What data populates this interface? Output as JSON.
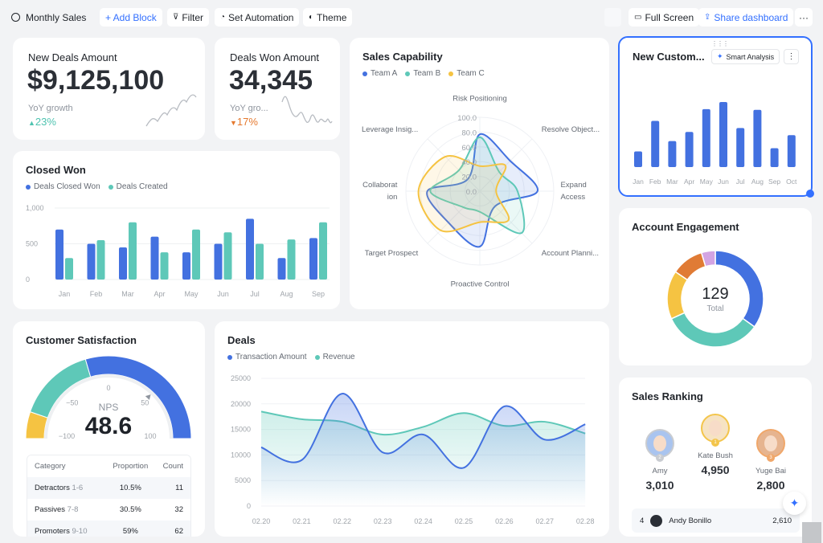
{
  "toolbar": {
    "title": "Monthly Sales",
    "add_block": "+ Add Block",
    "filter": "Filter",
    "automation": "Set Automation",
    "theme": "Theme",
    "full_screen": "Full Screen",
    "share": "Share dashboard",
    "more": "···"
  },
  "colors": {
    "blue": "#4371e0",
    "teal": "#5ec8b8",
    "yellow": "#f5c342",
    "orange": "#e07b35",
    "purple": "#d3a4e3",
    "up": "#4fc3b0",
    "down": "#e5792f"
  },
  "kpi": [
    {
      "title": "New Deals Amount",
      "value": "$9,125,100",
      "sub": "YoY growth",
      "change": "23%",
      "dir": "up"
    },
    {
      "title": "Deals Won Amount",
      "value": "34,345",
      "sub": "YoY gro...",
      "change": "17%",
      "dir": "down"
    }
  ],
  "chart_data": [
    {
      "id": "closed_won",
      "type": "bar",
      "title": "Closed Won",
      "categories": [
        "Jan",
        "Feb",
        "Mar",
        "Apr",
        "May",
        "Jun",
        "Jul",
        "Aug",
        "Sep"
      ],
      "series": [
        {
          "name": "Deals Closed Won",
          "values": [
            700,
            500,
            450,
            600,
            380,
            500,
            850,
            300,
            580
          ]
        },
        {
          "name": "Deals Created",
          "values": [
            300,
            550,
            800,
            380,
            700,
            660,
            500,
            560,
            800
          ]
        }
      ],
      "ylim": [
        0,
        1000
      ],
      "yticks": [
        "0",
        "500",
        "1,000"
      ],
      "grid": true,
      "legend": "top-left"
    },
    {
      "id": "sales_capability",
      "type": "radar",
      "title": "Sales Capability",
      "axes": [
        "Risk Positioning",
        "Resolve Object...",
        "Expand Access",
        "Account Planni...",
        "Proactive Control",
        "Target Prospect",
        "Collaboration",
        "Leverage Insig..."
      ],
      "rticks": [
        "0.0",
        "20.0",
        "40.0",
        "60.0",
        "80.0",
        "100.0"
      ],
      "rlim": [
        0,
        100
      ],
      "series": [
        {
          "name": "Team A",
          "values": [
            77,
            58,
            78,
            29,
            75,
            60,
            71,
            23
          ]
        },
        {
          "name": "Team B",
          "values": [
            73,
            37,
            51,
            80,
            28,
            31,
            67,
            40
          ]
        },
        {
          "name": "Team C",
          "values": [
            34,
            49,
            22,
            55,
            42,
            75,
            83,
            66
          ]
        }
      ],
      "legend": "top-left"
    },
    {
      "id": "new_customers",
      "type": "bar",
      "title": "New Custom...",
      "categories": [
        "Jan",
        "Feb",
        "Mar",
        "Apr",
        "May",
        "Jun",
        "Jul",
        "Aug",
        "Sep",
        "Oct"
      ],
      "values": [
        24,
        71,
        40,
        54,
        89,
        100,
        60,
        88,
        29,
        49
      ]
    },
    {
      "id": "account_engagement",
      "type": "pie",
      "title": "Account Engagement",
      "values": [
        45,
        43,
        21,
        14,
        6
      ],
      "total": "129",
      "total_label": "Total"
    },
    {
      "id": "deals",
      "type": "area",
      "title": "Deals",
      "categories": [
        "02.20",
        "02.21",
        "02.22",
        "02.23",
        "02.24",
        "02.25",
        "02.26",
        "02.27",
        "02.28"
      ],
      "series": [
        {
          "name": "Transaction Amount",
          "values": [
            11500,
            9000,
            22000,
            10500,
            14000,
            7500,
            19500,
            13000,
            16000
          ]
        },
        {
          "name": "Revenue",
          "values": [
            18500,
            17000,
            16500,
            14000,
            15500,
            18200,
            15700,
            16500,
            14200
          ]
        }
      ],
      "ylim": [
        0,
        25000
      ],
      "yticks": [
        "0",
        "5000",
        "10000",
        "15000",
        "20000",
        "25000"
      ],
      "grid": true,
      "legend": "top-left"
    }
  ],
  "new_customers": {
    "smart_analysis": "Smart Analysis",
    "more": "⋮"
  },
  "satisfaction": {
    "title": "Customer Satisfaction",
    "label": "NPS",
    "value": "48.6",
    "nps": 48.6,
    "ticks": [
      "−100",
      "−50",
      "0",
      "50",
      "100"
    ],
    "headers": [
      "Category",
      "Proportion",
      "Count"
    ],
    "rows": [
      {
        "name": "Detractors",
        "range": "1-6",
        "proportion": "10.5%",
        "count": "11",
        "fraction": 0.105
      },
      {
        "name": "Passives",
        "range": "7-8",
        "proportion": "30.5%",
        "count": "32",
        "fraction": 0.305
      },
      {
        "name": "Promoters",
        "range": "9-10",
        "proportion": "59%",
        "count": "62",
        "fraction": 0.59
      }
    ]
  },
  "ranking": {
    "title": "Sales Ranking",
    "top": [
      {
        "rank": "2",
        "name": "Amy",
        "score": "3,010"
      },
      {
        "rank": "1",
        "name": "Kate Bush",
        "score": "4,950"
      },
      {
        "rank": "3",
        "name": "Yuge Bai",
        "score": "2,800"
      }
    ],
    "list": [
      {
        "rank": "4",
        "name": "Andy Bonillo",
        "score": "2,610"
      }
    ]
  }
}
